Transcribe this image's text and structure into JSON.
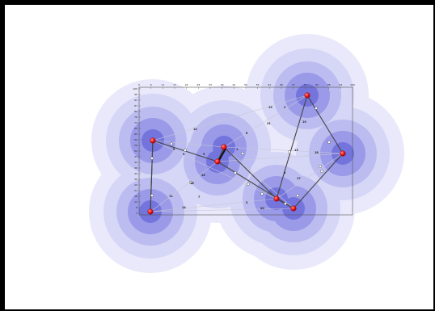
{
  "figure": {
    "colors": {
      "background": "#ffffff",
      "frame": "#000000",
      "halo_outer": "#e9e9fb",
      "halo_mid": "#d6d6f6",
      "halo_inner": "#bcbcf0",
      "halo_core": "#9a9ae8",
      "halo_center": "#7474dd",
      "route_line": "#444444",
      "faint_line": "#c8c8d8",
      "node_fill": "#ff2222",
      "node_dark": "#8a0000",
      "waypoint": "#ffffff"
    },
    "node_icon": "red-sphere-node",
    "waypoint_icon": "white-circle-waypoint",
    "top_ticks": [
      "0",
      "6",
      "11",
      "17",
      "22",
      "28",
      "33",
      "39",
      "44",
      "50",
      "55",
      "61",
      "66",
      "72",
      "77",
      "83",
      "88",
      "94",
      "100"
    ],
    "left_ticks": [
      "100",
      "96",
      "91",
      "87",
      "82",
      "78",
      "74",
      "69",
      "65",
      "60",
      "56",
      "52",
      "47",
      "43",
      "38",
      "34",
      "30",
      "25",
      "21",
      "16",
      "12",
      "8",
      "3"
    ],
    "annotation_labels": [
      "19",
      "2",
      "6",
      "12",
      "10",
      "13",
      "18",
      "21",
      "5",
      "4",
      "15",
      "9",
      "16",
      "8",
      "17",
      "11",
      "14",
      "3",
      "20",
      "7",
      "1"
    ]
  }
}
